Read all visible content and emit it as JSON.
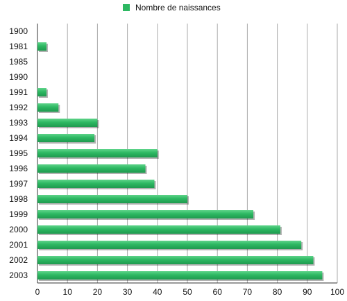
{
  "chart_data": {
    "type": "bar",
    "orientation": "horizontal",
    "categories": [
      "1900",
      "1981",
      "1985",
      "1990",
      "1991",
      "1992",
      "1993",
      "1994",
      "1995",
      "1996",
      "1997",
      "1998",
      "1999",
      "2000",
      "2001",
      "2002",
      "2003"
    ],
    "series": [
      {
        "name": "Nombre de naissances",
        "color": "#2db862",
        "values": [
          0,
          3,
          0,
          0,
          3,
          7,
          20,
          19,
          40,
          36,
          39,
          50,
          72,
          81,
          88,
          92,
          95
        ]
      }
    ],
    "xlim": [
      0,
      100
    ],
    "xticks": [
      "0",
      "10",
      "20",
      "30",
      "40",
      "50",
      "60",
      "70",
      "80",
      "90",
      "100"
    ],
    "grid": "vertical",
    "legend_position": "top-center",
    "title": "",
    "xlabel": "",
    "ylabel": ""
  }
}
